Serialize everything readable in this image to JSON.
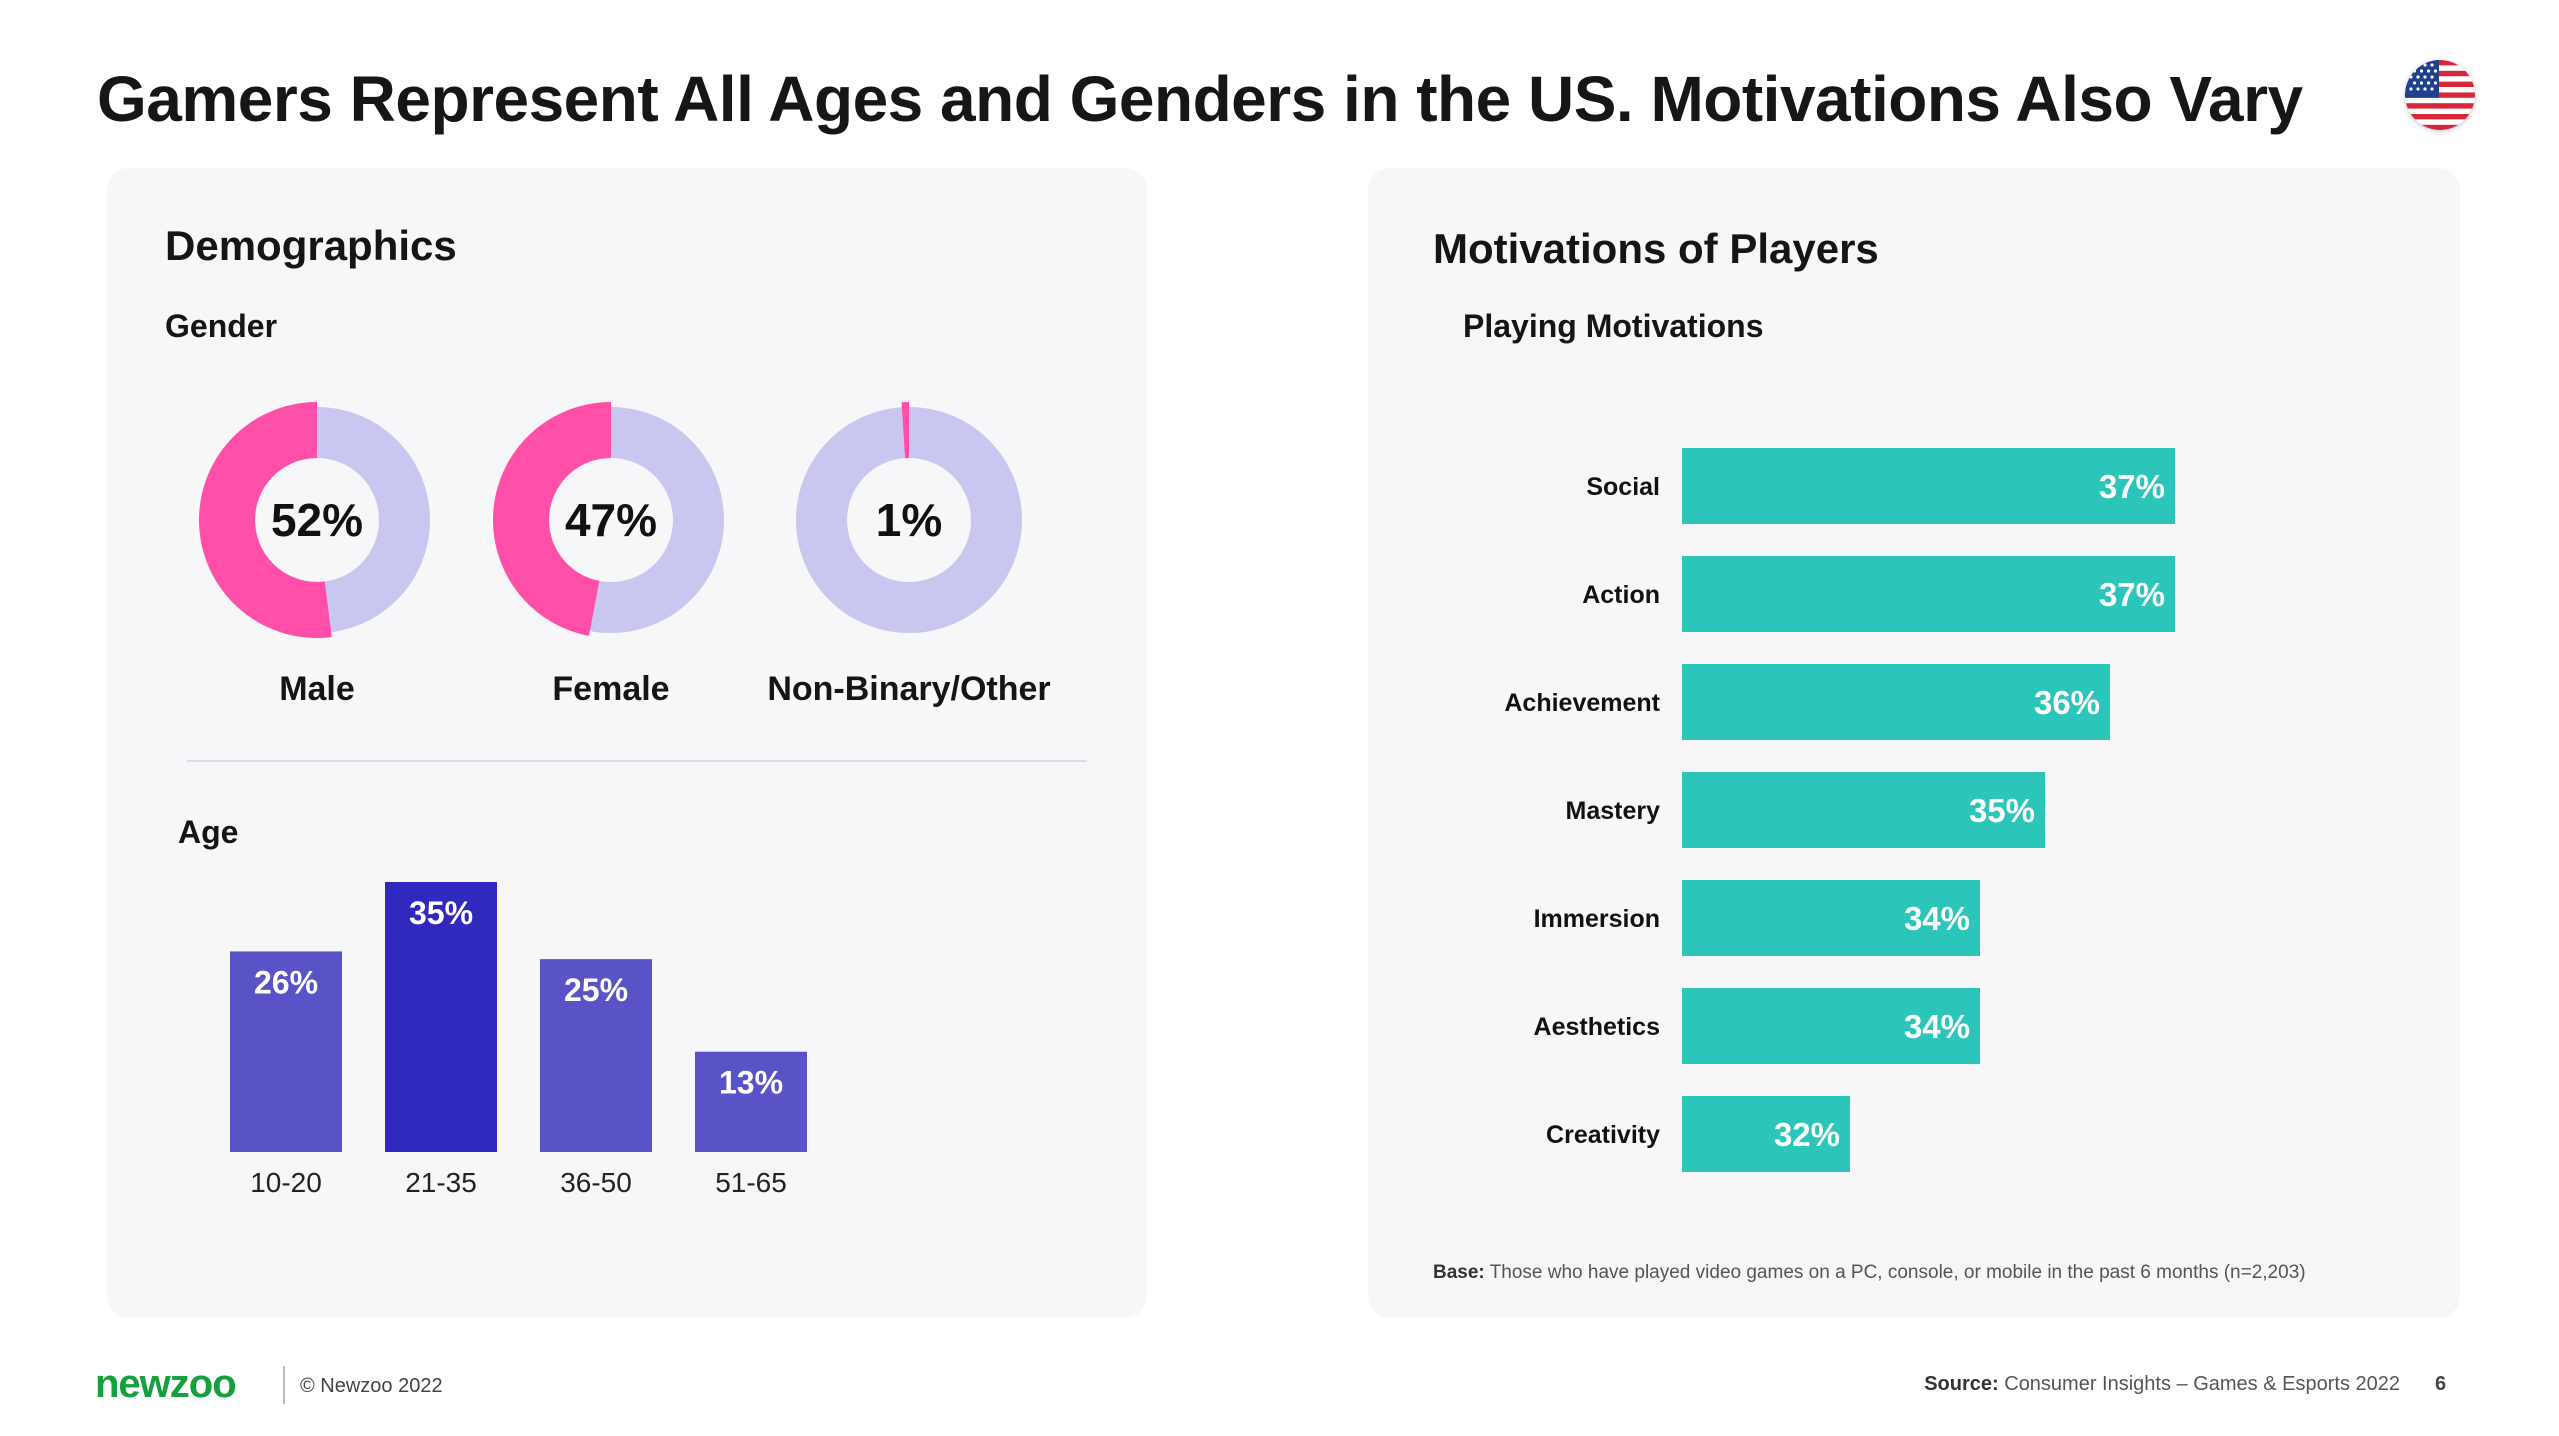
{
  "title": "Gamers Represent All Ages and Genders in the US. Motivations Also Vary",
  "flag_icon": "us-flag-icon",
  "demographics": {
    "heading": "Demographics",
    "gender_heading": "Gender",
    "age_heading": "Age"
  },
  "motivations": {
    "heading": "Motivations of Players",
    "subheading": "Playing Motivations",
    "base_label": "Base:",
    "base_text": " Those who have played video games on a PC, console, or mobile in the past 6 months (n=2,203)"
  },
  "footer": {
    "logo": "newzoo",
    "copyright": "© Newzoo 2022",
    "source_label": "Source:",
    "source_text": " Consumer Insights – Games & Esports 2022",
    "page": "6"
  },
  "colors": {
    "pink": "#ff4fa8",
    "lavender": "#c9c7ef",
    "teal": "#2cc5b9",
    "age_bar": "#5a53c8",
    "age_bar_highlight": "#3129be",
    "green": "#14a03c"
  },
  "chart_data": [
    {
      "type": "pie",
      "title": "Gender",
      "categories": [
        "Male",
        "Female",
        "Non-Binary/Other"
      ],
      "values": [
        52,
        47,
        1
      ],
      "labels": [
        "52%",
        "47%",
        "1%"
      ]
    },
    {
      "type": "bar",
      "title": "Age",
      "categories": [
        "10-20",
        "21-35",
        "36-50",
        "51-65"
      ],
      "values": [
        26,
        35,
        25,
        13
      ],
      "labels": [
        "26%",
        "35%",
        "25%",
        "13%"
      ],
      "ylim": [
        0,
        35
      ]
    },
    {
      "type": "bar",
      "orientation": "horizontal",
      "title": "Playing Motivations",
      "categories": [
        "Social",
        "Action",
        "Achievement",
        "Mastery",
        "Immersion",
        "Aesthetics",
        "Creativity"
      ],
      "values": [
        37,
        37,
        36,
        35,
        34,
        34,
        32
      ],
      "labels": [
        "37%",
        "37%",
        "36%",
        "35%",
        "34%",
        "34%",
        "32%"
      ]
    }
  ]
}
